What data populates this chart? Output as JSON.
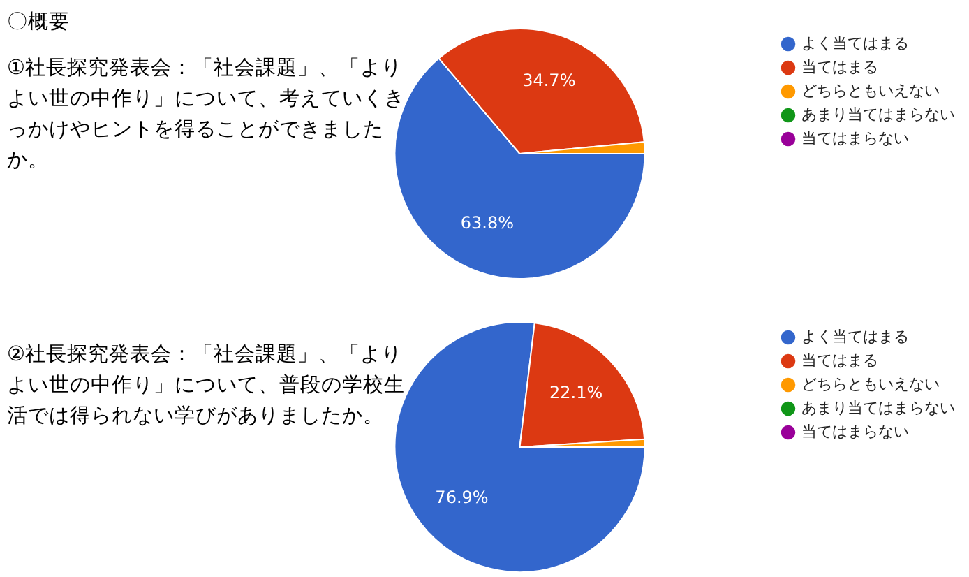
{
  "chart_data": [
    {
      "type": "pie",
      "title": "①社長探究発表会：「社会課題」、「よりよい世の中作り」について、考えていくきっかけやヒントを得ることができましたか。",
      "annotations": [
        "〇概要"
      ],
      "categories": [
        "よく当てはまる",
        "当てはまる",
        "どちらともいえない",
        "あまり当てはまらない",
        "当てはまらない"
      ],
      "values": [
        63.8,
        34.7,
        1.5,
        0,
        0
      ],
      "value_labels": [
        "63.8%",
        "34.7%",
        null,
        null,
        null
      ],
      "colors": [
        "#3366cc",
        "#dc3912",
        "#ff9900",
        "#109618",
        "#990099"
      ],
      "legend": "top right"
    },
    {
      "type": "pie",
      "title": "②社長探究発表会：「社会課題」、「よりよい世の中作り」について、普段の学校生活では得られない学びがありましたか。",
      "categories": [
        "よく当てはまる",
        "当てはまる",
        "どちらともいえない",
        "あまり当てはまらない",
        "当てはまらない"
      ],
      "values": [
        76.9,
        22.1,
        1.0,
        0,
        0
      ],
      "value_labels": [
        "76.9%",
        "22.1%",
        null,
        null,
        null
      ],
      "colors": [
        "#3366cc",
        "#dc3912",
        "#ff9900",
        "#109618",
        "#990099"
      ],
      "legend": "top right"
    }
  ]
}
